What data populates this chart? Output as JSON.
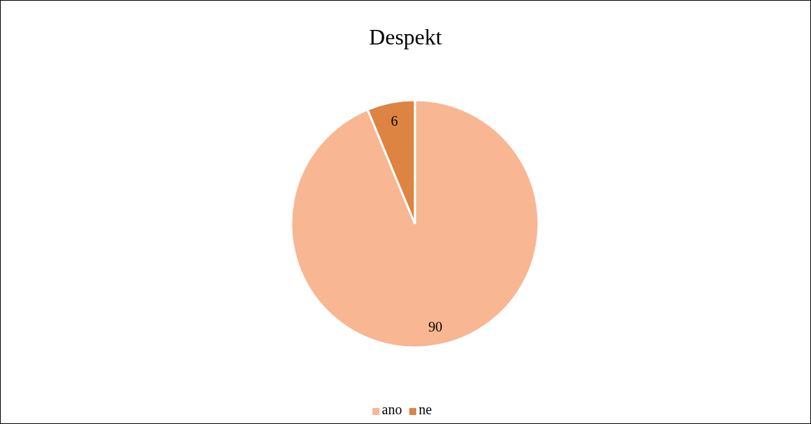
{
  "chart_data": {
    "type": "pie",
    "title": "Despekt",
    "categories": [
      "ano",
      "ne"
    ],
    "values": [
      90,
      6
    ],
    "colors": [
      "#f8b692",
      "#dd8442"
    ],
    "data_labels": true,
    "legend": "bottom"
  }
}
